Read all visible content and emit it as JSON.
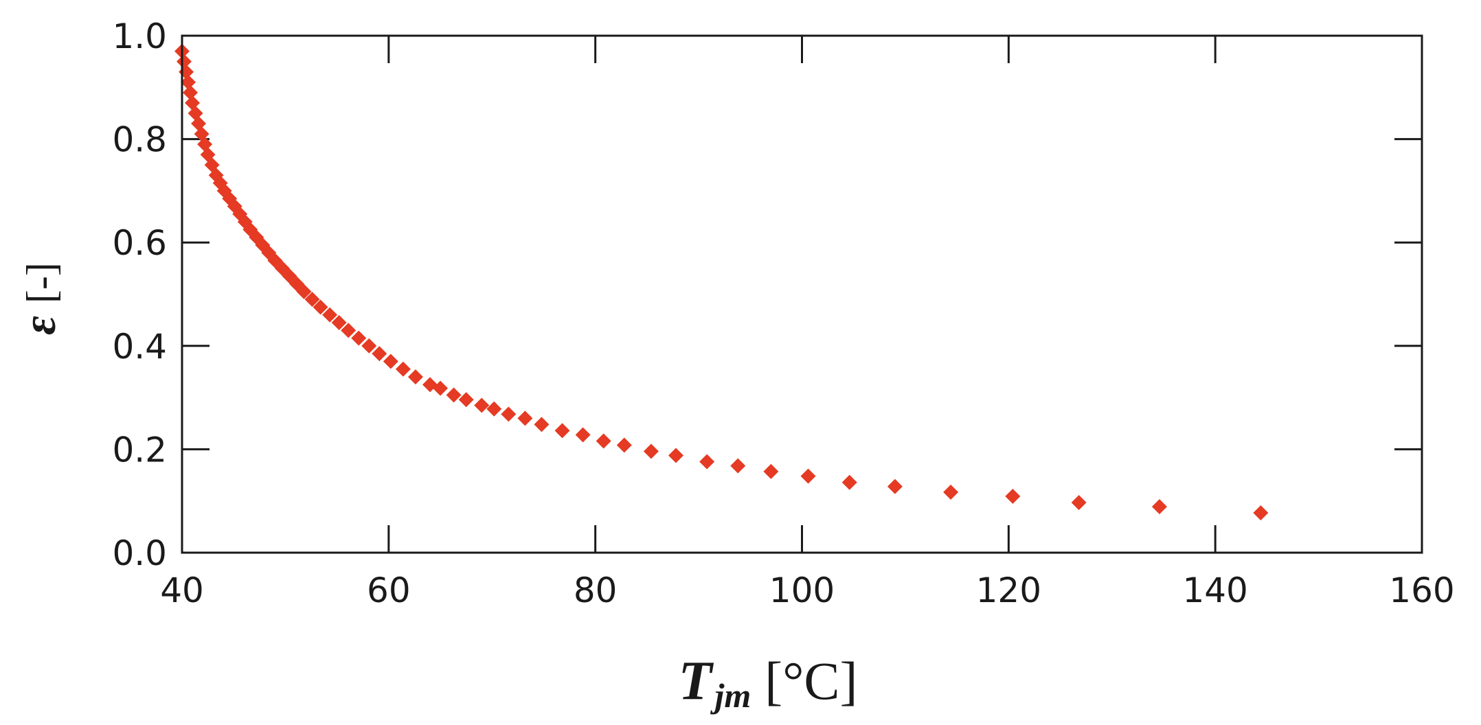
{
  "chart_data": {
    "type": "scatter",
    "title": "",
    "xlabel": {
      "symbol": "T",
      "subscript": "jm",
      "unit": "[°C]"
    },
    "ylabel": {
      "symbol": "ε",
      "unit": "[-]"
    },
    "xlim": [
      40,
      160
    ],
    "ylim": [
      0.0,
      1.0
    ],
    "xticks": [
      "40",
      "60",
      "80",
      "100",
      "120",
      "140",
      "160"
    ],
    "yticks": [
      "0.0",
      "0.2",
      "0.4",
      "0.6",
      "0.8",
      "1.0"
    ],
    "grid": false,
    "marker": "diamond",
    "color": "#e53a23",
    "series": [
      {
        "name": "ε",
        "points": [
          [
            40.0,
            0.97
          ],
          [
            40.2,
            0.95
          ],
          [
            40.4,
            0.93
          ],
          [
            40.6,
            0.91
          ],
          [
            40.8,
            0.89
          ],
          [
            41.0,
            0.87
          ],
          [
            41.3,
            0.85
          ],
          [
            41.6,
            0.83
          ],
          [
            41.9,
            0.81
          ],
          [
            42.2,
            0.79
          ],
          [
            42.5,
            0.77
          ],
          [
            42.9,
            0.75
          ],
          [
            43.3,
            0.73
          ],
          [
            43.7,
            0.715
          ],
          [
            44.1,
            0.7
          ],
          [
            44.6,
            0.685
          ],
          [
            45.1,
            0.67
          ],
          [
            45.6,
            0.655
          ],
          [
            46.1,
            0.64
          ],
          [
            46.6,
            0.625
          ],
          [
            47.2,
            0.61
          ],
          [
            47.8,
            0.595
          ],
          [
            48.4,
            0.58
          ],
          [
            49.0,
            0.565
          ],
          [
            49.7,
            0.55
          ],
          [
            50.4,
            0.535
          ],
          [
            51.1,
            0.52
          ],
          [
            51.8,
            0.505
          ],
          [
            52.6,
            0.49
          ],
          [
            53.4,
            0.475
          ],
          [
            54.3,
            0.46
          ],
          [
            55.2,
            0.445
          ],
          [
            56.1,
            0.43
          ],
          [
            57.1,
            0.415
          ],
          [
            58.1,
            0.4
          ],
          [
            59.1,
            0.385
          ],
          [
            60.2,
            0.37
          ],
          [
            61.4,
            0.355
          ],
          [
            62.6,
            0.34
          ],
          [
            64.0,
            0.325
          ],
          [
            65.0,
            0.318
          ],
          [
            66.3,
            0.305
          ],
          [
            67.5,
            0.296
          ],
          [
            69.0,
            0.285
          ],
          [
            70.2,
            0.278
          ],
          [
            71.6,
            0.268
          ],
          [
            73.2,
            0.26
          ],
          [
            74.8,
            0.248
          ],
          [
            76.8,
            0.236
          ],
          [
            78.8,
            0.228
          ],
          [
            80.8,
            0.216
          ],
          [
            82.8,
            0.208
          ],
          [
            85.4,
            0.196
          ],
          [
            87.8,
            0.188
          ],
          [
            90.8,
            0.176
          ],
          [
            93.8,
            0.168
          ],
          [
            97.0,
            0.157
          ],
          [
            100.6,
            0.148
          ],
          [
            104.6,
            0.136
          ],
          [
            109.0,
            0.128
          ],
          [
            114.4,
            0.117
          ],
          [
            120.4,
            0.109
          ],
          [
            126.8,
            0.097
          ],
          [
            134.6,
            0.089
          ],
          [
            144.4,
            0.077
          ]
        ]
      }
    ]
  }
}
